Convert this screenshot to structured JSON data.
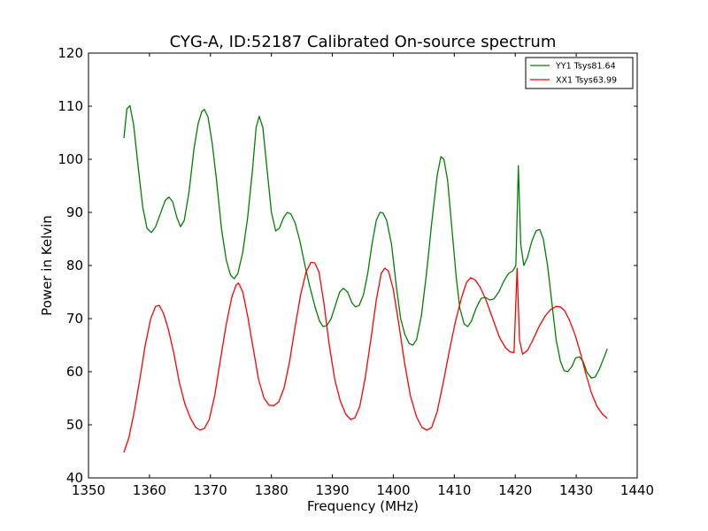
{
  "chart_data": {
    "type": "line",
    "title": "CYG-A, ID:52187 Calibrated On-source spectrum",
    "xlabel": "Frequency (MHz)",
    "ylabel": "Power in Kelvin",
    "xlim": [
      1350,
      1440
    ],
    "ylim": [
      40,
      120
    ],
    "xticks": [
      "1350",
      "1360",
      "1370",
      "1380",
      "1390",
      "1400",
      "1410",
      "1420",
      "1430",
      "1440"
    ],
    "yticks": [
      "40",
      "50",
      "60",
      "70",
      "80",
      "90",
      "100",
      "110",
      "120"
    ],
    "legend_position": "top-right",
    "grid": false,
    "series": [
      {
        "name": "YY1 Tsys81.64",
        "color": "#008000",
        "points": [
          [
            1355.8,
            104.0
          ],
          [
            1356.3,
            109.5
          ],
          [
            1356.8,
            110.1
          ],
          [
            1357.4,
            106.5
          ],
          [
            1358.2,
            98.0
          ],
          [
            1358.9,
            91.0
          ],
          [
            1359.6,
            87.0
          ],
          [
            1360.3,
            86.2
          ],
          [
            1361.0,
            87.3
          ],
          [
            1361.8,
            89.8
          ],
          [
            1362.6,
            92.3
          ],
          [
            1363.2,
            92.9
          ],
          [
            1363.8,
            92.0
          ],
          [
            1364.5,
            89.0
          ],
          [
            1365.1,
            87.3
          ],
          [
            1365.7,
            88.5
          ],
          [
            1366.5,
            94.0
          ],
          [
            1367.3,
            102.0
          ],
          [
            1368.0,
            106.8
          ],
          [
            1368.6,
            109.0
          ],
          [
            1369.0,
            109.4
          ],
          [
            1369.6,
            108.0
          ],
          [
            1370.3,
            103.0
          ],
          [
            1371.0,
            96.0
          ],
          [
            1371.8,
            87.0
          ],
          [
            1372.6,
            81.0
          ],
          [
            1373.3,
            78.2
          ],
          [
            1373.9,
            77.5
          ],
          [
            1374.5,
            78.5
          ],
          [
            1375.3,
            82.5
          ],
          [
            1376.1,
            89.0
          ],
          [
            1376.9,
            98.0
          ],
          [
            1377.5,
            106.0
          ],
          [
            1378.0,
            108.1
          ],
          [
            1378.6,
            106.0
          ],
          [
            1379.3,
            98.0
          ],
          [
            1380.0,
            90.0
          ],
          [
            1380.7,
            86.5
          ],
          [
            1381.3,
            87.0
          ],
          [
            1382.0,
            89.0
          ],
          [
            1382.6,
            90.0
          ],
          [
            1383.2,
            89.7
          ],
          [
            1383.9,
            88.0
          ],
          [
            1384.7,
            84.5
          ],
          [
            1385.5,
            80.0
          ],
          [
            1386.3,
            76.0
          ],
          [
            1387.2,
            72.0
          ],
          [
            1387.9,
            69.5
          ],
          [
            1388.5,
            68.5
          ],
          [
            1389.1,
            68.7
          ],
          [
            1389.8,
            70.0
          ],
          [
            1390.5,
            72.5
          ],
          [
            1391.2,
            75.0
          ],
          [
            1391.8,
            75.7
          ],
          [
            1392.5,
            75.0
          ],
          [
            1393.2,
            73.0
          ],
          [
            1393.8,
            72.2
          ],
          [
            1394.4,
            72.5
          ],
          [
            1395.1,
            74.5
          ],
          [
            1395.8,
            78.5
          ],
          [
            1396.5,
            84.0
          ],
          [
            1397.2,
            88.5
          ],
          [
            1397.8,
            90.0
          ],
          [
            1398.3,
            89.9
          ],
          [
            1398.9,
            88.5
          ],
          [
            1399.7,
            84.0
          ],
          [
            1400.5,
            76.0
          ],
          [
            1401.2,
            70.0
          ],
          [
            1401.9,
            67.0
          ],
          [
            1402.6,
            65.3
          ],
          [
            1403.2,
            65.0
          ],
          [
            1403.8,
            66.0
          ],
          [
            1404.6,
            70.5
          ],
          [
            1405.4,
            78.0
          ],
          [
            1406.3,
            88.0
          ],
          [
            1407.2,
            97.0
          ],
          [
            1407.8,
            100.5
          ],
          [
            1408.3,
            100.0
          ],
          [
            1408.9,
            96.0
          ],
          [
            1409.6,
            87.0
          ],
          [
            1410.3,
            78.0
          ],
          [
            1410.9,
            72.0
          ],
          [
            1411.6,
            69.0
          ],
          [
            1412.2,
            68.5
          ],
          [
            1412.8,
            69.5
          ],
          [
            1413.6,
            72.0
          ],
          [
            1414.4,
            73.8
          ],
          [
            1415.1,
            74.0
          ],
          [
            1415.8,
            73.5
          ],
          [
            1416.5,
            73.7
          ],
          [
            1417.3,
            75.0
          ],
          [
            1418.1,
            77.0
          ],
          [
            1418.9,
            78.5
          ],
          [
            1419.6,
            79.0
          ],
          [
            1420.1,
            80.0
          ],
          [
            1420.5,
            98.8
          ],
          [
            1420.9,
            84.0
          ],
          [
            1421.4,
            80.0
          ],
          [
            1422.0,
            81.5
          ],
          [
            1422.7,
            84.5
          ],
          [
            1423.4,
            86.5
          ],
          [
            1424.0,
            86.8
          ],
          [
            1424.6,
            85.0
          ],
          [
            1425.3,
            80.0
          ],
          [
            1426.0,
            73.0
          ],
          [
            1426.7,
            66.0
          ],
          [
            1427.4,
            62.0
          ],
          [
            1428.0,
            60.2
          ],
          [
            1428.6,
            60.0
          ],
          [
            1429.3,
            61.0
          ],
          [
            1429.9,
            62.6
          ],
          [
            1430.5,
            62.8
          ],
          [
            1431.1,
            62.0
          ],
          [
            1431.8,
            59.8
          ],
          [
            1432.5,
            58.8
          ],
          [
            1433.1,
            59.0
          ],
          [
            1433.8,
            60.5
          ],
          [
            1434.5,
            62.5
          ],
          [
            1435.1,
            64.3
          ]
        ]
      },
      {
        "name": "XX1 Tsys63.99",
        "color": "#ff0000",
        "points": [
          [
            1355.8,
            44.8
          ],
          [
            1356.6,
            47.5
          ],
          [
            1357.5,
            52.5
          ],
          [
            1358.4,
            58.5
          ],
          [
            1359.3,
            65.0
          ],
          [
            1360.2,
            70.0
          ],
          [
            1361.0,
            72.3
          ],
          [
            1361.6,
            72.5
          ],
          [
            1362.3,
            71.0
          ],
          [
            1363.1,
            68.0
          ],
          [
            1364.0,
            63.5
          ],
          [
            1364.9,
            58.0
          ],
          [
            1365.8,
            54.0
          ],
          [
            1366.7,
            51.3
          ],
          [
            1367.6,
            49.5
          ],
          [
            1368.3,
            49.0
          ],
          [
            1369.0,
            49.3
          ],
          [
            1369.8,
            51.0
          ],
          [
            1370.7,
            55.5
          ],
          [
            1371.6,
            62.0
          ],
          [
            1372.6,
            69.0
          ],
          [
            1373.5,
            74.0
          ],
          [
            1374.2,
            76.3
          ],
          [
            1374.6,
            76.7
          ],
          [
            1375.3,
            75.0
          ],
          [
            1376.1,
            70.5
          ],
          [
            1377.0,
            64.5
          ],
          [
            1377.9,
            58.5
          ],
          [
            1378.8,
            55.0
          ],
          [
            1379.6,
            53.7
          ],
          [
            1380.4,
            53.6
          ],
          [
            1381.2,
            54.3
          ],
          [
            1382.1,
            57.0
          ],
          [
            1383.0,
            62.0
          ],
          [
            1383.9,
            68.5
          ],
          [
            1384.8,
            74.5
          ],
          [
            1385.7,
            78.8
          ],
          [
            1386.5,
            80.6
          ],
          [
            1387.1,
            80.5
          ],
          [
            1387.8,
            78.8
          ],
          [
            1388.6,
            73.0
          ],
          [
            1389.5,
            65.0
          ],
          [
            1390.4,
            58.5
          ],
          [
            1391.3,
            54.5
          ],
          [
            1392.2,
            52.0
          ],
          [
            1393.0,
            51.0
          ],
          [
            1393.7,
            51.3
          ],
          [
            1394.5,
            53.5
          ],
          [
            1395.4,
            59.0
          ],
          [
            1396.3,
            66.0
          ],
          [
            1397.2,
            73.5
          ],
          [
            1398.0,
            78.5
          ],
          [
            1398.6,
            79.5
          ],
          [
            1399.2,
            79.0
          ],
          [
            1400.0,
            75.5
          ],
          [
            1400.9,
            69.0
          ],
          [
            1401.8,
            62.0
          ],
          [
            1402.8,
            55.5
          ],
          [
            1403.8,
            51.5
          ],
          [
            1404.7,
            49.5
          ],
          [
            1405.5,
            49.0
          ],
          [
            1406.3,
            49.5
          ],
          [
            1407.2,
            52.5
          ],
          [
            1408.2,
            58.0
          ],
          [
            1409.2,
            64.0
          ],
          [
            1410.2,
            69.5
          ],
          [
            1411.2,
            74.0
          ],
          [
            1412.0,
            76.8
          ],
          [
            1412.7,
            77.7
          ],
          [
            1413.4,
            77.3
          ],
          [
            1414.2,
            76.0
          ],
          [
            1415.2,
            73.5
          ],
          [
            1416.3,
            70.0
          ],
          [
            1417.4,
            66.5
          ],
          [
            1418.4,
            64.5
          ],
          [
            1419.2,
            63.7
          ],
          [
            1419.8,
            63.6
          ],
          [
            1420.3,
            79.5
          ],
          [
            1420.7,
            66.0
          ],
          [
            1421.2,
            63.3
          ],
          [
            1422.0,
            64.0
          ],
          [
            1422.9,
            66.0
          ],
          [
            1423.9,
            68.5
          ],
          [
            1424.9,
            70.5
          ],
          [
            1425.8,
            71.7
          ],
          [
            1426.7,
            72.3
          ],
          [
            1427.4,
            72.2
          ],
          [
            1428.1,
            71.5
          ],
          [
            1428.9,
            69.7
          ],
          [
            1429.8,
            67.0
          ],
          [
            1430.7,
            63.5
          ],
          [
            1431.6,
            59.5
          ],
          [
            1432.5,
            56.0
          ],
          [
            1433.4,
            53.5
          ],
          [
            1434.3,
            52.0
          ],
          [
            1435.1,
            51.2
          ]
        ]
      }
    ]
  }
}
